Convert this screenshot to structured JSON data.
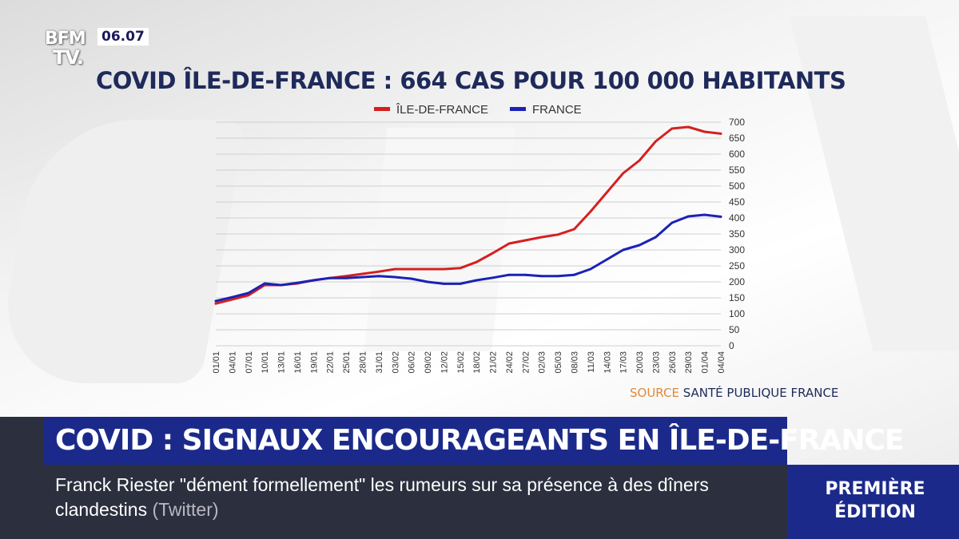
{
  "broadcast": {
    "logo_line1": "BFM",
    "logo_line2": "TV.",
    "time": "06.07",
    "headline": "COVID : SIGNAUX ENCOURAGEANTS EN ÎLE-DE-FRANCE",
    "ticker_main": "Franck Riester \"dément formellement\" les rumeurs sur sa présence à des dîners clandestins",
    "ticker_source": "(Twitter)",
    "edition_line1": "PREMIÈRE",
    "edition_line2": "ÉDITION",
    "source_label": "SOURCE",
    "source_name": "SANTÉ PUBLIQUE FRANCE"
  },
  "chart_data": {
    "type": "line",
    "title": "COVID ÎLE-DE-FRANCE : 664 CAS POUR 100 000 HABITANTS",
    "ylim": [
      0,
      700
    ],
    "yticks": [
      0,
      50,
      100,
      150,
      200,
      250,
      300,
      350,
      400,
      450,
      500,
      550,
      600,
      650,
      700
    ],
    "categories": [
      "01/01",
      "04/01",
      "07/01",
      "10/01",
      "13/01",
      "16/01",
      "19/01",
      "22/01",
      "25/01",
      "28/01",
      "31/01",
      "03/02",
      "06/02",
      "09/02",
      "12/02",
      "15/02",
      "18/02",
      "21/02",
      "24/02",
      "27/02",
      "02/03",
      "05/03",
      "08/03",
      "11/03",
      "14/03",
      "17/03",
      "20/03",
      "23/03",
      "26/03",
      "29/03",
      "01/04",
      "04/04"
    ],
    "legend_position": "top",
    "series": [
      {
        "name": "ÎLE-DE-FRANCE",
        "color": "#d42020",
        "values": [
          132,
          145,
          158,
          190,
          190,
          195,
          205,
          212,
          218,
          225,
          232,
          240,
          240,
          240,
          240,
          243,
          262,
          290,
          320,
          330,
          340,
          348,
          365,
          420,
          480,
          540,
          580,
          640,
          680,
          685,
          670,
          664
        ]
      },
      {
        "name": "FRANCE",
        "color": "#1a22b8",
        "values": [
          140,
          152,
          165,
          195,
          190,
          197,
          205,
          212,
          212,
          215,
          218,
          215,
          210,
          200,
          194,
          194,
          205,
          213,
          222,
          222,
          218,
          218,
          222,
          240,
          270,
          300,
          315,
          340,
          385,
          405,
          410,
          404
        ]
      }
    ]
  }
}
